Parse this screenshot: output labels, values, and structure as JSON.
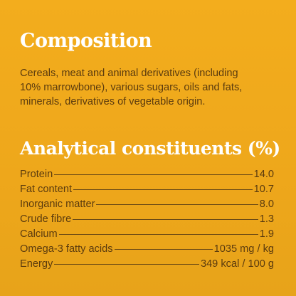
{
  "composition": {
    "title": "Composition",
    "lines": [
      "Cereals, meat and animal derivatives (including",
      "10% marrowbone), various sugars, oils and fats,",
      "minerals, derivatives of vegetable origin."
    ]
  },
  "analytical": {
    "title": "Analytical constituents (%)",
    "rows": [
      [
        "Protein",
        "14.0"
      ],
      [
        "Fat content",
        "10.7"
      ],
      [
        "Inorganic matter",
        "8.0"
      ],
      [
        "Crude fibre",
        "1.3"
      ],
      [
        "Calcium",
        "1.9"
      ],
      [
        "Omega-3 fatty acids",
        "1035 mg / kg"
      ],
      [
        "Energy",
        "349 kcal / 100 g"
      ]
    ]
  }
}
